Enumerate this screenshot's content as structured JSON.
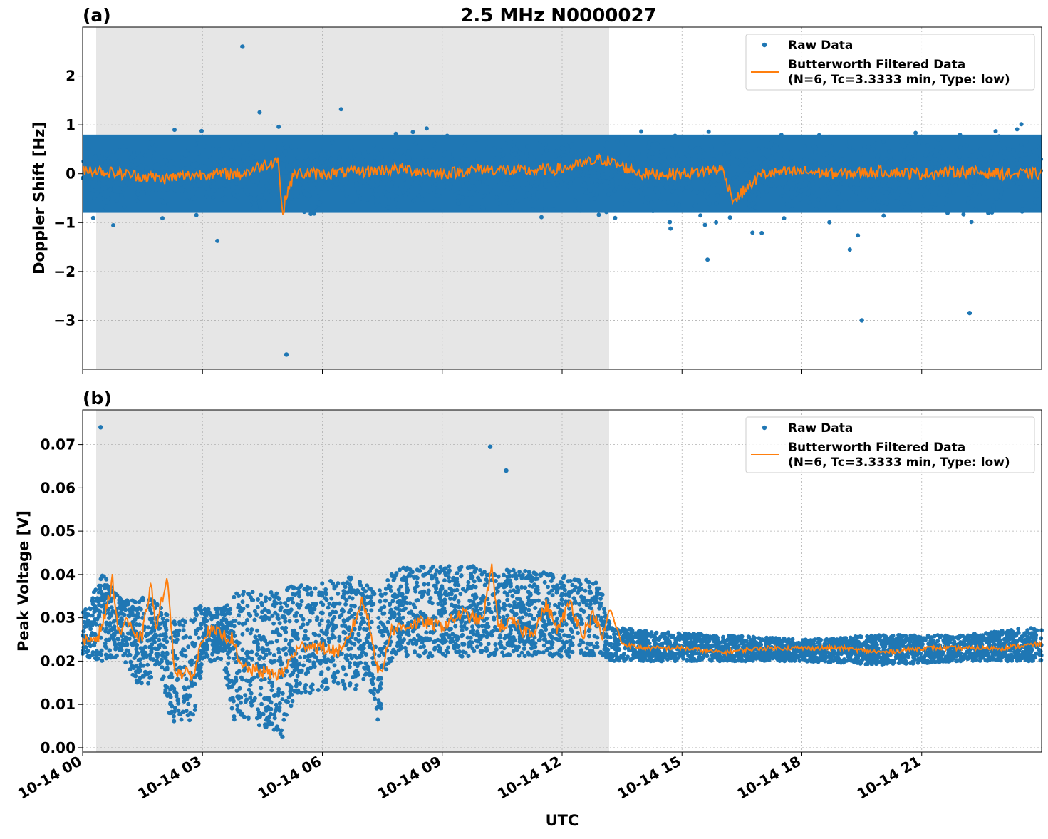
{
  "figure": {
    "title": "2.5 MHz N0000027",
    "xlabel": "UTC",
    "x_tick_labels": [
      "10-14 00",
      "10-14 03",
      "10-14 06",
      "10-14 09",
      "10-14 12",
      "10-14 15",
      "10-14 18",
      "10-14 21"
    ]
  },
  "colors": {
    "raw": "#1f77b4",
    "filtered": "#ff7f0e",
    "shade": "#e6e6e6",
    "grid": "#b0b0b0"
  },
  "legend": {
    "raw_label": "Raw Data",
    "filtered_label_line1": "Butterworth Filtered Data",
    "filtered_label_line2": "(N=6, Tc=3.3333 min, Type: low)"
  },
  "chart_data": [
    {
      "panel": "(a)",
      "type": "scatter",
      "title": "2.5 MHz N0000027",
      "xlabel": "UTC",
      "ylabel": "Doppler Shift [Hz]",
      "x_unit": "hours UTC on 10-14",
      "xlim": [
        0,
        24
      ],
      "ylim": [
        -4.0,
        3.0
      ],
      "y_ticks": [
        2,
        1,
        0,
        -1,
        -2,
        -3
      ],
      "y_tick_labels": [
        "2",
        "1",
        "0",
        "−1",
        "−2",
        "−3"
      ],
      "grid": true,
      "legend_position": "top-right",
      "shaded_interval_hours": [
        0.33,
        13.17
      ],
      "series": [
        {
          "name": "Raw Data",
          "style": "points",
          "core_band": [
            -0.8,
            0.8
          ],
          "typical_extremes": [
            -2.0,
            2.1
          ]
        },
        {
          "name": "Butterworth Filtered Data (N=6, Tc=3.3333 min, Type: low)",
          "style": "line",
          "x": [
            0,
            1,
            2,
            3,
            4,
            4.9,
            5.0,
            5.1,
            5.3,
            6,
            7,
            8,
            9,
            10,
            11,
            12,
            13,
            14,
            15,
            16,
            16.3,
            17,
            18,
            19,
            20,
            21,
            22,
            23,
            24
          ],
          "y": [
            0.1,
            0.0,
            -0.1,
            0.0,
            0.0,
            0.3,
            -0.9,
            -0.4,
            0.0,
            0.0,
            0.05,
            0.1,
            0.0,
            0.1,
            0.05,
            0.1,
            0.3,
            0.0,
            0.0,
            0.1,
            -0.55,
            0.0,
            0.05,
            0.0,
            0.05,
            0.0,
            0.05,
            0.0,
            0.0
          ]
        }
      ],
      "notable_points": [
        {
          "x": 5.1,
          "y": -3.7
        },
        {
          "x": 4.0,
          "y": 2.6
        },
        {
          "x": 19.5,
          "y": -3.0
        },
        {
          "x": 22.2,
          "y": -2.85
        }
      ]
    },
    {
      "panel": "(b)",
      "type": "scatter",
      "xlabel": "UTC",
      "ylabel": "Peak Voltage [V]",
      "x_unit": "hours UTC on 10-14",
      "xlim": [
        0,
        24
      ],
      "ylim": [
        -0.001,
        0.078
      ],
      "y_ticks": [
        0.0,
        0.01,
        0.02,
        0.03,
        0.04,
        0.05,
        0.06,
        0.07
      ],
      "y_tick_labels": [
        "0.00",
        "0.01",
        "0.02",
        "0.03",
        "0.04",
        "0.05",
        "0.06",
        "0.07"
      ],
      "grid": true,
      "legend_position": "top-right",
      "shaded_interval_hours": [
        0.33,
        13.17
      ],
      "series": [
        {
          "name": "Raw Data",
          "style": "points",
          "band_x": [
            0,
            0.5,
            1,
            1.4,
            1.6,
            1.9,
            2.2,
            2.5,
            2.8,
            3.0,
            3.5,
            3.8,
            4.2,
            5.0,
            5.3,
            6.0,
            6.8,
            7.1,
            7.4,
            7.7,
            8,
            9,
            10,
            11,
            12,
            13,
            13.2,
            14,
            16,
            18,
            20,
            22,
            23,
            24
          ],
          "band_low": [
            0.021,
            0.02,
            0.021,
            0.014,
            0.014,
            0.02,
            0.006,
            0.006,
            0.006,
            0.02,
            0.02,
            0.006,
            0.006,
            0.003,
            0.012,
            0.013,
            0.013,
            0.016,
            0.006,
            0.02,
            0.021,
            0.021,
            0.021,
            0.021,
            0.021,
            0.021,
            0.02,
            0.02,
            0.02,
            0.02,
            0.019,
            0.02,
            0.02,
            0.02
          ],
          "band_high": [
            0.031,
            0.04,
            0.034,
            0.034,
            0.036,
            0.033,
            0.03,
            0.03,
            0.032,
            0.033,
            0.032,
            0.036,
            0.036,
            0.036,
            0.038,
            0.038,
            0.04,
            0.038,
            0.036,
            0.04,
            0.042,
            0.042,
            0.042,
            0.041,
            0.04,
            0.038,
            0.028,
            0.027,
            0.026,
            0.025,
            0.026,
            0.026,
            0.027,
            0.028
          ]
        },
        {
          "name": "Butterworth Filtered Data (N=6, Tc=3.3333 min, Type: low)",
          "style": "line",
          "x": [
            0,
            0.4,
            0.6,
            0.75,
            0.9,
            1.1,
            1.3,
            1.5,
            1.7,
            1.85,
            2.0,
            2.1,
            2.2,
            2.3,
            2.5,
            2.8,
            3.0,
            3.2,
            3.5,
            3.8,
            3.9,
            4.2,
            4.8,
            5.0,
            5.3,
            5.6,
            6.0,
            6.5,
            6.8,
            7.0,
            7.2,
            7.4,
            7.5,
            7.7,
            8.0,
            8.5,
            9.0,
            9.5,
            10.0,
            10.25,
            10.4,
            10.8,
            11.0,
            11.3,
            11.6,
            11.9,
            12.2,
            12.5,
            12.8,
            13.0,
            13.2,
            13.5,
            14,
            15,
            16,
            17,
            18,
            19,
            20,
            21,
            22,
            23,
            24
          ],
          "y": [
            0.024,
            0.026,
            0.032,
            0.039,
            0.026,
            0.03,
            0.025,
            0.026,
            0.038,
            0.027,
            0.035,
            0.04,
            0.03,
            0.018,
            0.017,
            0.017,
            0.026,
            0.027,
            0.026,
            0.025,
            0.019,
            0.018,
            0.017,
            0.017,
            0.022,
            0.024,
            0.023,
            0.022,
            0.029,
            0.034,
            0.028,
            0.017,
            0.018,
            0.027,
            0.028,
            0.029,
            0.028,
            0.031,
            0.029,
            0.042,
            0.028,
            0.029,
            0.027,
            0.027,
            0.033,
            0.027,
            0.034,
            0.026,
            0.031,
            0.025,
            0.032,
            0.024,
            0.023,
            0.023,
            0.022,
            0.023,
            0.023,
            0.023,
            0.022,
            0.023,
            0.023,
            0.023,
            0.024
          ]
        }
      ],
      "notable_points": [
        {
          "x": 0.45,
          "y": 0.074
        },
        {
          "x": 10.2,
          "y": 0.0695
        },
        {
          "x": 10.6,
          "y": 0.064
        },
        {
          "x": 5.0,
          "y": 0.0025
        }
      ]
    }
  ]
}
